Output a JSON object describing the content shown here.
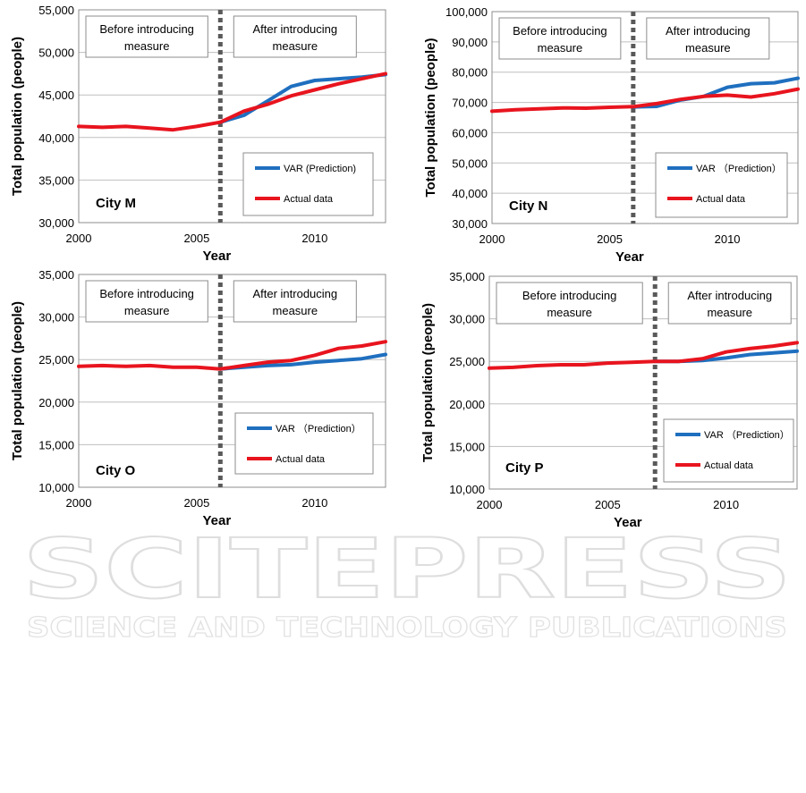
{
  "watermark": {
    "main": "SCITEPRESS",
    "sub": "SCIENCE AND TECHNOLOGY PUBLICATIONS"
  },
  "colors": {
    "prediction": "#1f6fbf",
    "actual": "#e8141e",
    "divider": "#595959",
    "grid": "#bfbfbf"
  },
  "chart_data": [
    {
      "id": "M",
      "type": "line",
      "city_label": "City M",
      "xlabel": "Year",
      "ylabel": "Total population (people)",
      "xlim": [
        2000,
        2013
      ],
      "xticks": [
        2000,
        2005,
        2010
      ],
      "ylim": [
        30000,
        55000
      ],
      "yticks": [
        30000,
        35000,
        40000,
        45000,
        50000,
        55000
      ],
      "ytick_labels": [
        "30,000",
        "35,000",
        "40,000",
        "45,000",
        "50,000",
        "55,000"
      ],
      "grid": true,
      "divider_year": 2006,
      "before_label": [
        "Before introducing",
        "measure"
      ],
      "after_label": [
        "After introducing",
        "measure"
      ],
      "legend": [
        "VAR (Prediction)",
        "Actual data"
      ],
      "series": [
        {
          "name": "VAR (Prediction)",
          "x": [
            2006,
            2007,
            2008,
            2009,
            2010,
            2011,
            2012,
            2013
          ],
          "values": [
            41800,
            42600,
            44300,
            46000,
            46700,
            46900,
            47100,
            47400
          ]
        },
        {
          "name": "Actual data",
          "x": [
            2000,
            2001,
            2002,
            2003,
            2004,
            2005,
            2006,
            2007,
            2008,
            2009,
            2010,
            2011,
            2012,
            2013
          ],
          "values": [
            41300,
            41200,
            41300,
            41100,
            40900,
            41300,
            41800,
            43100,
            43900,
            44900,
            45600,
            46300,
            46900,
            47500
          ]
        }
      ]
    },
    {
      "id": "N",
      "type": "line",
      "city_label": "City N",
      "xlabel": "Year",
      "ylabel": "Total population (people)",
      "xlim": [
        2000,
        2013
      ],
      "xticks": [
        2000,
        2005,
        2010
      ],
      "ylim": [
        30000,
        100000
      ],
      "yticks": [
        30000,
        40000,
        50000,
        60000,
        70000,
        80000,
        90000,
        100000
      ],
      "ytick_labels": [
        "30,000",
        "40,000",
        "50,000",
        "60,000",
        "70,000",
        "80,000",
        "90,000",
        "100,000"
      ],
      "grid": true,
      "divider_year": 2006,
      "before_label": [
        "Before introducing",
        "measure"
      ],
      "after_label": [
        "After introducing",
        "measure"
      ],
      "legend": [
        "VAR （Prediction）",
        "Actual data"
      ],
      "series": [
        {
          "name": "VAR (Prediction)",
          "x": [
            2006,
            2007,
            2008,
            2009,
            2010,
            2011,
            2012,
            2013
          ],
          "values": [
            68500,
            68700,
            70800,
            72000,
            75000,
            76200,
            76500,
            78000
          ]
        },
        {
          "name": "Actual data",
          "x": [
            2000,
            2001,
            2002,
            2003,
            2004,
            2005,
            2006,
            2007,
            2008,
            2009,
            2010,
            2011,
            2012,
            2013
          ],
          "values": [
            67100,
            67600,
            67900,
            68200,
            68100,
            68400,
            68600,
            69600,
            71000,
            72000,
            72400,
            71800,
            72900,
            74400
          ]
        }
      ]
    },
    {
      "id": "O",
      "type": "line",
      "city_label": "City O",
      "xlabel": "Year",
      "ylabel": "Total population (people)",
      "xlim": [
        2000,
        2013
      ],
      "xticks": [
        2000,
        2005,
        2010
      ],
      "ylim": [
        10000,
        35000
      ],
      "yticks": [
        10000,
        15000,
        20000,
        25000,
        30000,
        35000
      ],
      "ytick_labels": [
        "10,000",
        "15,000",
        "20,000",
        "25,000",
        "30,000",
        "35,000"
      ],
      "grid": true,
      "divider_year": 2006,
      "before_label": [
        "Before introducing",
        "measure"
      ],
      "after_label": [
        "After introducing",
        "measure"
      ],
      "legend": [
        "VAR （Prediction）",
        "Actual data"
      ],
      "series": [
        {
          "name": "VAR (Prediction)",
          "x": [
            2006,
            2007,
            2008,
            2009,
            2010,
            2011,
            2012,
            2013
          ],
          "values": [
            23900,
            24100,
            24300,
            24400,
            24700,
            24900,
            25100,
            25600
          ]
        },
        {
          "name": "Actual data",
          "x": [
            2000,
            2001,
            2002,
            2003,
            2004,
            2005,
            2006,
            2007,
            2008,
            2009,
            2010,
            2011,
            2012,
            2013
          ],
          "values": [
            24200,
            24300,
            24200,
            24300,
            24100,
            24100,
            23900,
            24300,
            24700,
            24900,
            25500,
            26300,
            26600,
            27100
          ]
        }
      ]
    },
    {
      "id": "P",
      "type": "line",
      "city_label": "City P",
      "xlabel": "Year",
      "ylabel": "Total population (people)",
      "xlim": [
        2000,
        2013
      ],
      "xticks": [
        2000,
        2005,
        2010
      ],
      "ylim": [
        10000,
        35000
      ],
      "yticks": [
        10000,
        15000,
        20000,
        25000,
        30000,
        35000
      ],
      "ytick_labels": [
        "10,000",
        "15,000",
        "20,000",
        "25,000",
        "30,000",
        "35,000"
      ],
      "grid": true,
      "divider_year": 2007,
      "before_label": [
        "Before introducing",
        "measure"
      ],
      "after_label": [
        "After introducing",
        "measure"
      ],
      "legend": [
        "VAR （Prediction）",
        "Actual data"
      ],
      "series": [
        {
          "name": "VAR (Prediction)",
          "x": [
            2007,
            2008,
            2009,
            2010,
            2011,
            2012,
            2013
          ],
          "values": [
            25000,
            25000,
            25100,
            25400,
            25800,
            26000,
            26200
          ]
        },
        {
          "name": "Actual data",
          "x": [
            2000,
            2001,
            2002,
            2003,
            2004,
            2005,
            2006,
            2007,
            2008,
            2009,
            2010,
            2011,
            2012,
            2013
          ],
          "values": [
            24200,
            24300,
            24500,
            24600,
            24600,
            24800,
            24900,
            25000,
            25000,
            25300,
            26100,
            26500,
            26800,
            27200
          ]
        }
      ]
    }
  ]
}
